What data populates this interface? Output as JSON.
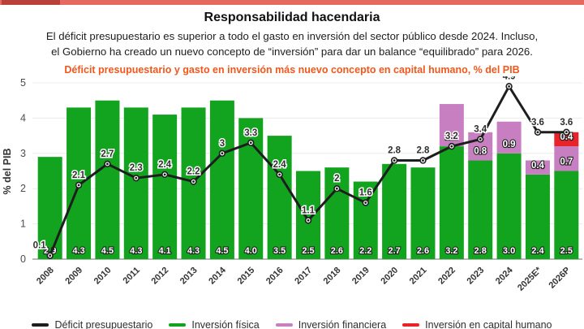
{
  "top_bar": {
    "color": "#e5695e",
    "accent_color": "#b8423a"
  },
  "header": {
    "title": "Responsabilidad hacendaria",
    "subtitle_line1": "El déficit presupuestario es superior a todo el gasto en inversión del sector público desde 2024. Incluso,",
    "subtitle_line2": "el Gobierno ha creado un nuevo concepto de “inversión” para dar un balance “equilibrado” para 2026.",
    "chart_heading": "Déficit presupuestario y gasto en inversión más nuevo concepto en capital humano, % del PIB",
    "heading_color": "#f2571c"
  },
  "chart_data": {
    "type": "bar",
    "subtype": "stacked bars with overlaid line",
    "title": "Déficit presupuestario y gasto en inversión más nuevo concepto en capital humano, % del PIB",
    "xlabel": "",
    "ylabel": "% del PIB",
    "ylim": [
      0,
      5
    ],
    "yticks": [
      0,
      1,
      2,
      3,
      4,
      5
    ],
    "grid": true,
    "legend_position": "bottom",
    "categories": [
      "2008",
      "2009",
      "2010",
      "2011",
      "2012",
      "2013",
      "2014",
      "2015",
      "2016",
      "2017",
      "2018",
      "2019",
      "2020",
      "2021",
      "2022",
      "2023",
      "2024",
      "2025E*",
      "2026P"
    ],
    "series": [
      {
        "key": "inversion-fisica",
        "name": "Inversión física",
        "type": "bar",
        "color": "#13a41f",
        "values": [
          2.9,
          4.3,
          4.5,
          4.3,
          4.1,
          4.3,
          4.5,
          4.0,
          3.5,
          2.5,
          2.6,
          2.2,
          2.7,
          2.6,
          3.2,
          2.8,
          3.0,
          2.4,
          2.5
        ],
        "labels": [
          "2.9",
          "4.3",
          "4.5",
          "4.3",
          "4.1",
          "4.3",
          "4.5",
          "4.0",
          "3.5",
          "2.5",
          "2.6",
          "2.2",
          "2.7",
          "2.6",
          "3.2",
          "2.8",
          "3.0",
          "2.4",
          "2.5"
        ]
      },
      {
        "key": "inversion-financiera",
        "name": "Inversión financiera",
        "type": "bar",
        "color": "#c77fc2",
        "values": [
          0,
          0,
          0,
          0,
          0,
          0,
          0,
          0,
          0,
          0,
          0,
          0,
          0,
          0,
          1.2,
          0.8,
          0.9,
          0.4,
          0.7
        ],
        "labels": [
          "",
          "",
          "",
          "",
          "",
          "",
          "",
          "",
          "",
          "",
          "",
          "",
          "",
          "",
          "1.2",
          "0.8",
          "0.9",
          "0.4",
          "0.7"
        ]
      },
      {
        "key": "inversion-capital-humano",
        "name": "Inversión en capital humano",
        "type": "bar",
        "color": "#e8232a",
        "values": [
          0,
          0,
          0,
          0,
          0,
          0,
          0,
          0,
          0,
          0,
          0,
          0,
          0,
          0,
          0,
          0,
          0,
          0,
          0.4
        ],
        "labels": [
          "",
          "",
          "",
          "",
          "",
          "",
          "",
          "",
          "",
          "",
          "",
          "",
          "",
          "",
          "",
          "",
          "",
          "",
          "0.4"
        ]
      },
      {
        "key": "deficit-presupuestario",
        "name": "Déficit presupuestario",
        "type": "line",
        "color": "#1e1e1e",
        "values": [
          0.1,
          2.1,
          2.7,
          2.3,
          2.4,
          2.2,
          3.0,
          3.3,
          2.4,
          1.1,
          2.0,
          1.6,
          2.8,
          2.8,
          3.2,
          3.4,
          4.9,
          3.6,
          3.6
        ],
        "labels": [
          "0.1",
          "2.1",
          "2.7",
          "2.3",
          "2.4",
          "2.2",
          "3",
          "3.3",
          "2.4",
          "1.1",
          "2",
          "1.6",
          "2.8",
          "2.8",
          "3.2",
          "3.4",
          "4.9",
          "3.6",
          "3.6"
        ]
      }
    ],
    "legend": [
      {
        "key": "deficit-presupuestario",
        "label": "Déficit presupuestario",
        "color": "#1e1e1e"
      },
      {
        "key": "inversion-fisica",
        "label": "Inversión física",
        "color": "#13a41f"
      },
      {
        "key": "inversion-financiera",
        "label": "Inversión financiera",
        "color": "#c77fc2"
      },
      {
        "key": "inversion-capital-humano",
        "label": "Inversión en capital humano",
        "color": "#e8232a"
      }
    ]
  }
}
